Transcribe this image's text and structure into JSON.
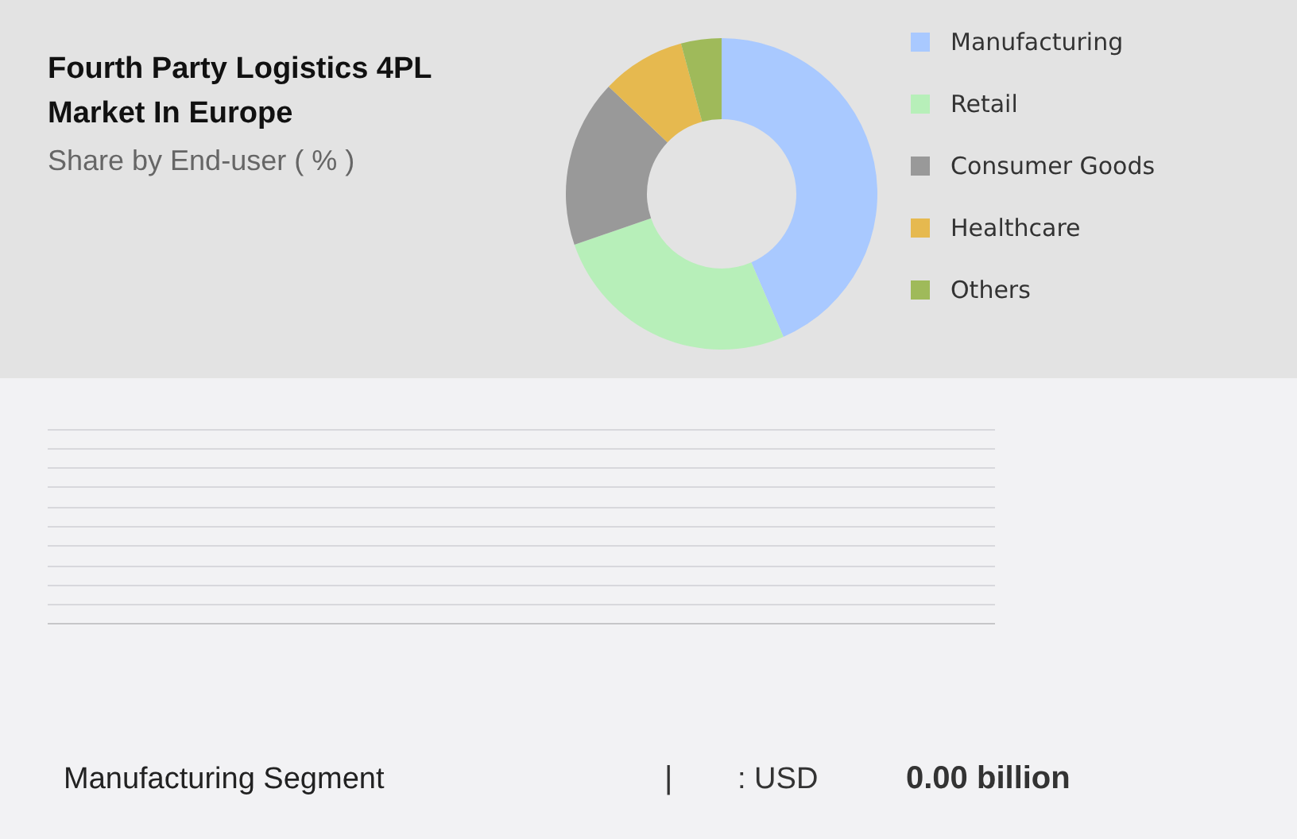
{
  "chart_data": {
    "type": "donut",
    "title": "Fourth Party Logistics 4PL Market In Europe",
    "subtitle": "Share by End-user ( % )",
    "categories": [
      "Manufacturing",
      "Retail",
      "Consumer Goods",
      "Healthcare",
      "Others"
    ],
    "values": [
      43.5,
      26.2,
      17.4,
      8.7,
      4.2
    ],
    "colors": [
      "#a9c9ff",
      "#b7efb9",
      "#999999",
      "#e6b94f",
      "#9fba5a"
    ],
    "legend": "right",
    "annotations": [
      "Manufacturing Segment",
      "|",
      ": USD",
      "0.00 billion"
    ]
  }
}
